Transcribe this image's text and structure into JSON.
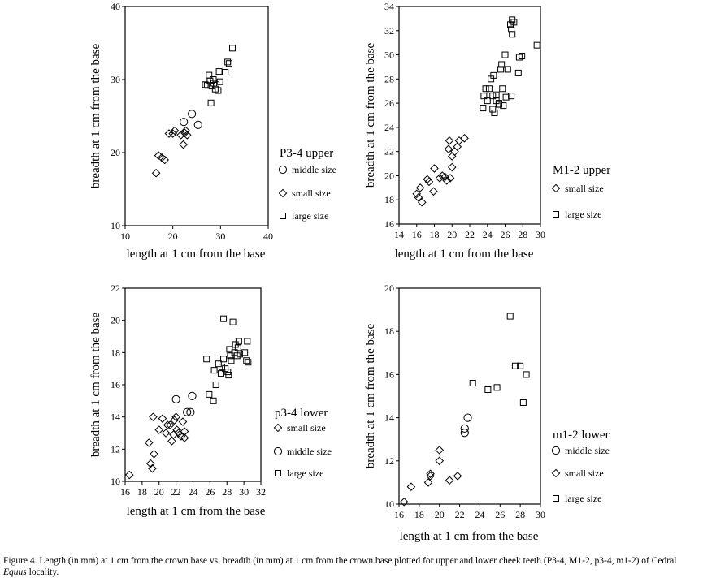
{
  "chart_data": [
    {
      "id": "p34upper",
      "type": "scatter",
      "legend_title": "P3-4 upper",
      "xlabel": "length at 1 cm from the base",
      "ylabel": "breadth at 1 cm from the base",
      "xlim": [
        10,
        40
      ],
      "ylim": [
        10,
        40
      ],
      "xticks": [
        10,
        20,
        30,
        40
      ],
      "yticks": [
        10,
        20,
        30,
        40
      ],
      "legend_order": [
        "middle size",
        "small size",
        "large size"
      ],
      "series": [
        {
          "name": "middle size",
          "marker": "circle",
          "points": [
            [
              22.3,
              24.2
            ],
            [
              24.0,
              25.3
            ],
            [
              25.3,
              23.8
            ]
          ]
        },
        {
          "name": "small size",
          "marker": "diamond",
          "points": [
            [
              16.5,
              17.2
            ],
            [
              17.0,
              19.6
            ],
            [
              17.7,
              19.3
            ],
            [
              18.3,
              19.0
            ],
            [
              19.2,
              22.6
            ],
            [
              20.0,
              22.6
            ],
            [
              20.4,
              23.0
            ],
            [
              21.7,
              22.4
            ],
            [
              22.2,
              21.1
            ],
            [
              22.5,
              22.7
            ],
            [
              23.0,
              22.4
            ],
            [
              22.7,
              23.0
            ]
          ]
        },
        {
          "name": "large size",
          "marker": "square",
          "points": [
            [
              26.8,
              29.3
            ],
            [
              27.2,
              29.2
            ],
            [
              27.6,
              30.6
            ],
            [
              27.8,
              29.8
            ],
            [
              28.0,
              26.8
            ],
            [
              28.2,
              29.1
            ],
            [
              28.5,
              30.0
            ],
            [
              28.6,
              29.5
            ],
            [
              28.9,
              28.7
            ],
            [
              29.1,
              29.3
            ],
            [
              29.5,
              28.5
            ],
            [
              29.7,
              31.1
            ],
            [
              29.9,
              29.7
            ],
            [
              31.0,
              31.0
            ],
            [
              31.5,
              32.4
            ],
            [
              31.8,
              32.2
            ],
            [
              32.5,
              34.3
            ]
          ]
        }
      ]
    },
    {
      "id": "m12upper",
      "type": "scatter",
      "legend_title": "M1-2 upper",
      "xlabel": "length at 1 cm from the base",
      "ylabel": "breadth at 1 cm from the base",
      "xlim": [
        14,
        30
      ],
      "ylim": [
        16,
        34
      ],
      "xticks": [
        14,
        16,
        18,
        20,
        22,
        24,
        26,
        28,
        30
      ],
      "yticks": [
        16,
        18,
        20,
        22,
        24,
        26,
        28,
        30,
        32,
        34
      ],
      "legend_order": [
        "small size",
        "large size"
      ],
      "series": [
        {
          "name": "small size",
          "marker": "diamond",
          "points": [
            [
              16.0,
              18.5
            ],
            [
              16.2,
              18.2
            ],
            [
              16.4,
              19.0
            ],
            [
              16.6,
              17.8
            ],
            [
              17.2,
              19.7
            ],
            [
              17.4,
              19.5
            ],
            [
              17.9,
              18.7
            ],
            [
              18.0,
              20.6
            ],
            [
              18.6,
              19.8
            ],
            [
              18.9,
              20.0
            ],
            [
              19.2,
              19.9
            ],
            [
              19.4,
              19.6
            ],
            [
              19.6,
              22.2
            ],
            [
              19.7,
              22.9
            ],
            [
              19.8,
              19.8
            ],
            [
              20.0,
              21.6
            ],
            [
              20.0,
              20.7
            ],
            [
              20.3,
              22.0
            ],
            [
              20.6,
              22.4
            ],
            [
              20.8,
              22.9
            ],
            [
              21.4,
              23.1
            ]
          ]
        },
        {
          "name": "large size",
          "marker": "square",
          "points": [
            [
              23.5,
              25.6
            ],
            [
              23.6,
              26.6
            ],
            [
              23.8,
              27.2
            ],
            [
              24.0,
              26.2
            ],
            [
              24.2,
              27.2
            ],
            [
              24.4,
              28.0
            ],
            [
              24.6,
              25.5
            ],
            [
              24.6,
              26.6
            ],
            [
              24.7,
              28.3
            ],
            [
              24.8,
              25.2
            ],
            [
              25.0,
              26.2
            ],
            [
              25.0,
              26.7
            ],
            [
              25.3,
              25.9
            ],
            [
              25.3,
              26.0
            ],
            [
              25.5,
              28.8
            ],
            [
              25.6,
              29.2
            ],
            [
              25.7,
              27.2
            ],
            [
              25.8,
              25.8
            ],
            [
              26.0,
              30.0
            ],
            [
              26.1,
              26.5
            ],
            [
              26.3,
              28.8
            ],
            [
              26.6,
              32.5
            ],
            [
              26.7,
              26.6
            ],
            [
              26.7,
              32.1
            ],
            [
              26.8,
              32.9
            ],
            [
              26.8,
              31.7
            ],
            [
              27.0,
              32.7
            ],
            [
              27.5,
              28.5
            ],
            [
              27.6,
              29.8
            ],
            [
              27.9,
              29.9
            ],
            [
              29.6,
              30.8
            ]
          ]
        }
      ]
    },
    {
      "id": "p34lower",
      "type": "scatter",
      "legend_title": "p3-4 lower",
      "xlabel": "length at 1 cm from the base",
      "ylabel": "breadth at 1 cm from the base",
      "xlim": [
        16,
        32
      ],
      "ylim": [
        10,
        22
      ],
      "xticks": [
        16,
        18,
        20,
        22,
        24,
        26,
        28,
        30,
        32
      ],
      "yticks": [
        10,
        12,
        14,
        16,
        18,
        20,
        22
      ],
      "legend_order": [
        "small size",
        "middle size",
        "large size"
      ],
      "series": [
        {
          "name": "small size",
          "marker": "diamond",
          "points": [
            [
              16.5,
              10.4
            ],
            [
              18.8,
              12.4
            ],
            [
              19.0,
              11.1
            ],
            [
              19.2,
              10.8
            ],
            [
              19.3,
              14.0
            ],
            [
              19.4,
              11.7
            ],
            [
              20.0,
              13.2
            ],
            [
              20.4,
              13.9
            ],
            [
              20.8,
              13.0
            ],
            [
              21.0,
              13.5
            ],
            [
              21.3,
              13.5
            ],
            [
              21.5,
              12.5
            ],
            [
              21.7,
              12.9
            ],
            [
              21.8,
              13.8
            ],
            [
              22.0,
              14.0
            ],
            [
              22.1,
              13.2
            ],
            [
              22.3,
              13.0
            ],
            [
              22.6,
              12.8
            ],
            [
              22.8,
              13.7
            ],
            [
              23.0,
              12.7
            ],
            [
              23.0,
              13.1
            ]
          ]
        },
        {
          "name": "middle size",
          "marker": "circle",
          "points": [
            [
              22.0,
              15.1
            ],
            [
              23.3,
              14.3
            ],
            [
              23.7,
              14.3
            ],
            [
              23.9,
              15.3
            ]
          ]
        },
        {
          "name": "large size",
          "marker": "square",
          "points": [
            [
              25.6,
              17.6
            ],
            [
              25.9,
              15.4
            ],
            [
              26.4,
              15.0
            ],
            [
              26.5,
              16.9
            ],
            [
              26.7,
              16.0
            ],
            [
              27.0,
              17.3
            ],
            [
              27.3,
              16.7
            ],
            [
              27.4,
              17.1
            ],
            [
              27.6,
              17.6
            ],
            [
              27.6,
              20.1
            ],
            [
              27.8,
              17.0
            ],
            [
              28.1,
              16.8
            ],
            [
              28.2,
              16.6
            ],
            [
              28.3,
              18.2
            ],
            [
              28.4,
              17.8
            ],
            [
              28.5,
              17.5
            ],
            [
              28.7,
              19.9
            ],
            [
              28.9,
              18.0
            ],
            [
              29.0,
              18.5
            ],
            [
              29.2,
              17.8
            ],
            [
              29.3,
              18.3
            ],
            [
              29.4,
              18.7
            ],
            [
              29.5,
              17.9
            ],
            [
              30.1,
              18.0
            ],
            [
              30.3,
              17.5
            ],
            [
              30.4,
              18.7
            ],
            [
              30.5,
              17.4
            ]
          ]
        }
      ]
    },
    {
      "id": "m12lower",
      "type": "scatter",
      "legend_title": "m1-2 lower",
      "xlabel": "length at 1 cm from the base",
      "ylabel": "breadth at 1 cm from the base",
      "xlim": [
        16,
        30
      ],
      "ylim": [
        10,
        20
      ],
      "xticks": [
        16,
        18,
        20,
        22,
        24,
        26,
        28,
        30
      ],
      "yticks": [
        10,
        12,
        14,
        16,
        18,
        20
      ],
      "legend_order": [
        "middle size",
        "small size",
        "large size"
      ],
      "series": [
        {
          "name": "middle size",
          "marker": "circle",
          "points": [
            [
              22.5,
              13.3
            ],
            [
              22.5,
              13.5
            ],
            [
              22.8,
              14.0
            ]
          ]
        },
        {
          "name": "small size",
          "marker": "diamond",
          "points": [
            [
              16.5,
              10.1
            ],
            [
              17.2,
              10.8
            ],
            [
              18.9,
              11.0
            ],
            [
              19.1,
              11.3
            ],
            [
              19.1,
              11.4
            ],
            [
              20.0,
              12.0
            ],
            [
              20.0,
              12.5
            ],
            [
              21.0,
              11.1
            ],
            [
              21.8,
              11.3
            ]
          ]
        },
        {
          "name": "large size",
          "marker": "square",
          "points": [
            [
              23.3,
              15.6
            ],
            [
              24.8,
              15.3
            ],
            [
              25.7,
              15.4
            ],
            [
              27.0,
              18.7
            ],
            [
              27.5,
              16.4
            ],
            [
              28.0,
              16.4
            ],
            [
              28.3,
              14.7
            ],
            [
              28.6,
              16.0
            ]
          ]
        }
      ]
    }
  ],
  "caption": {
    "prefix": "Figure 4. Length (in mm) at 1 cm from the crown base vs. breadth (in mm) at 1 cm from the crown base plotted for upper and lower cheek teeth (P3-4, M1-2, p3-4, m1-2) of Cedral ",
    "italic": "Equus",
    "suffix": " locality."
  }
}
